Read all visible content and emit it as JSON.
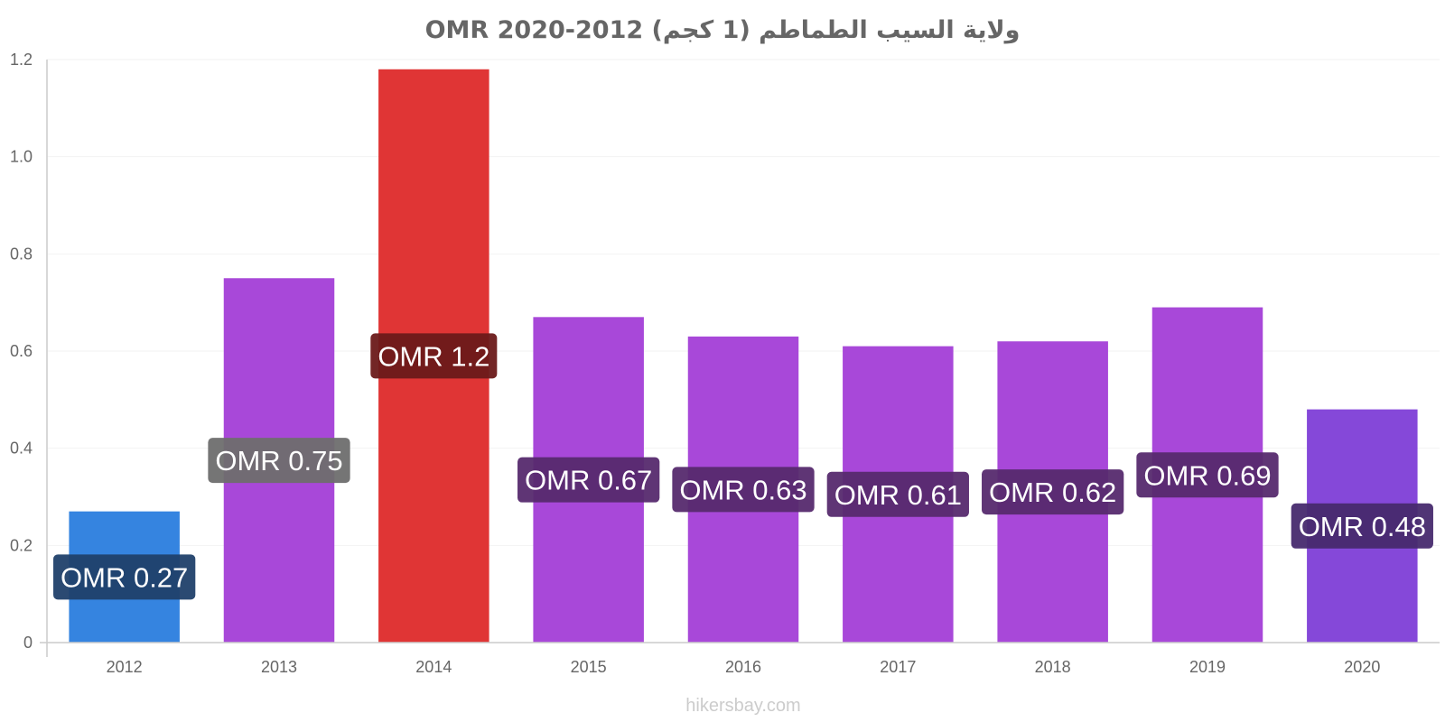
{
  "chart_data": {
    "type": "bar",
    "title": "ولاية السيب الطماطم (1 كجم) 2012-2020 OMR",
    "xlabel": "",
    "ylabel": "",
    "categories": [
      "2012",
      "2013",
      "2014",
      "2015",
      "2016",
      "2017",
      "2018",
      "2019",
      "2020"
    ],
    "values": [
      0.27,
      0.75,
      1.18,
      0.67,
      0.63,
      0.61,
      0.62,
      0.69,
      0.48
    ],
    "data_labels": [
      "OMR 0.27",
      "OMR 0.75",
      "OMR 1.2",
      "OMR 0.67",
      "OMR 0.63",
      "OMR 0.61",
      "OMR 0.62",
      "OMR 0.69",
      "OMR 0.48"
    ],
    "bar_colors": [
      "#3584e0",
      "#a848d9",
      "#e03535",
      "#a848d9",
      "#a848d9",
      "#a848d9",
      "#a848d9",
      "#a848d9",
      "#8548d9"
    ],
    "label_colors": [
      "#20406a",
      "#6e6e6e",
      "#6b1a1a",
      "#562a6e",
      "#562a6e",
      "#562a6e",
      "#562a6e",
      "#562a6e",
      "#472a6e"
    ],
    "ylim": [
      0,
      1.2
    ],
    "yticks": [
      0,
      0.2,
      0.4,
      0.6,
      0.8,
      1.0,
      1.2
    ],
    "ytick_labels": [
      "0",
      "0.2",
      "0.4",
      "0.6",
      "0.8",
      "1.0",
      "1.2"
    ],
    "grid": true,
    "legend": "none"
  },
  "watermark": "hikersbay.com"
}
